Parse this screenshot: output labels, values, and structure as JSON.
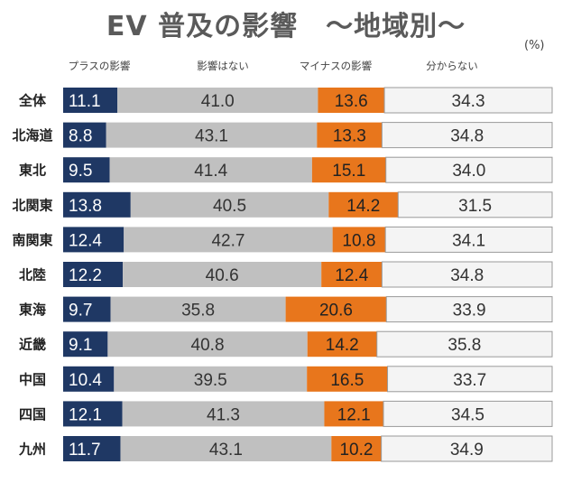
{
  "chart_data": {
    "type": "bar",
    "stacked": true,
    "orientation": "horizontal",
    "normalized": "percent",
    "title": "EV 普及の影響　～地域別～",
    "unit": "(%)",
    "categories": [
      "全体",
      "北海道",
      "東北",
      "北関東",
      "南関東",
      "北陸",
      "東海",
      "近畿",
      "中国",
      "四国",
      "九州"
    ],
    "series": [
      {
        "name": "プラスの影響",
        "color": "#1f3864",
        "label_color": "#ffffff",
        "values": [
          11.1,
          8.8,
          9.5,
          13.8,
          12.4,
          12.2,
          9.7,
          9.1,
          10.4,
          12.1,
          11.7
        ]
      },
      {
        "name": "影響はない",
        "color": "#c0c0c0",
        "label_color": "#333333",
        "values": [
          41.0,
          43.1,
          41.4,
          40.5,
          42.7,
          40.6,
          35.8,
          40.8,
          39.5,
          41.3,
          43.1
        ]
      },
      {
        "name": "マイナスの影響",
        "color": "#e8761c",
        "label_color": "#222222",
        "values": [
          13.6,
          13.3,
          15.1,
          14.2,
          10.8,
          12.4,
          20.6,
          14.2,
          16.5,
          12.1,
          10.2
        ]
      },
      {
        "name": "分からない",
        "color": "#f4f4f4",
        "label_color": "#333333",
        "values": [
          34.3,
          34.8,
          34.0,
          31.5,
          34.1,
          34.8,
          33.9,
          35.8,
          33.7,
          34.5,
          34.9
        ]
      }
    ],
    "xlim": [
      0,
      100
    ]
  }
}
